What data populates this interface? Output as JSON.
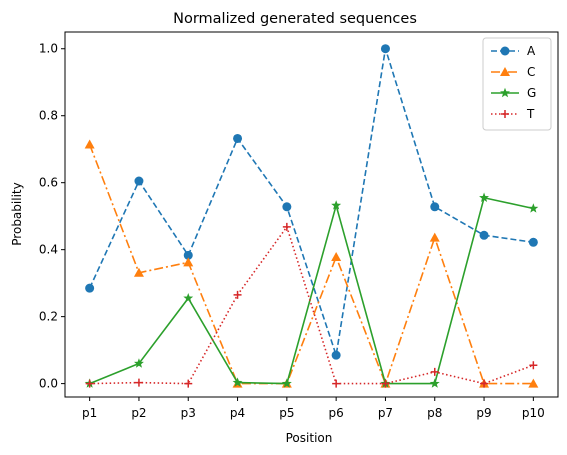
{
  "chart_data": {
    "type": "line",
    "title": "Normalized generated sequences",
    "xlabel": "Position",
    "ylabel": "Probability",
    "categories": [
      "p1",
      "p2",
      "p3",
      "p4",
      "p5",
      "p6",
      "p7",
      "p8",
      "p9",
      "p10"
    ],
    "ylim": [
      -0.04,
      1.05
    ],
    "yticks": [
      0.0,
      0.2,
      0.4,
      0.6,
      0.8,
      1.0
    ],
    "ytick_labels": [
      "0.0",
      "0.2",
      "0.4",
      "0.6",
      "0.8",
      "1.0"
    ],
    "grid": false,
    "legend_position": "top-right",
    "series": [
      {
        "name": "A",
        "color": "#1f77b4",
        "dash": "dashed",
        "marker": "circle",
        "values": [
          0.285,
          0.605,
          0.383,
          0.732,
          0.528,
          0.085,
          1.0,
          0.528,
          0.443,
          0.422
        ]
      },
      {
        "name": "C",
        "color": "#ff7f0e",
        "dash": "dashdot",
        "marker": "triangle",
        "values": [
          0.714,
          0.331,
          0.362,
          0.0,
          0.0,
          0.378,
          0.0,
          0.436,
          0.0,
          0.0
        ]
      },
      {
        "name": "G",
        "color": "#2ca02c",
        "dash": "solid",
        "marker": "star",
        "values": [
          0.0,
          0.06,
          0.255,
          0.003,
          0.0,
          0.532,
          0.0,
          0.0,
          0.555,
          0.523
        ]
      },
      {
        "name": "T",
        "color": "#d62728",
        "dash": "dotted",
        "marker": "plus",
        "values": [
          0.0,
          0.003,
          0.0,
          0.265,
          0.468,
          0.0,
          0.0,
          0.035,
          0.0,
          0.055
        ]
      }
    ]
  }
}
